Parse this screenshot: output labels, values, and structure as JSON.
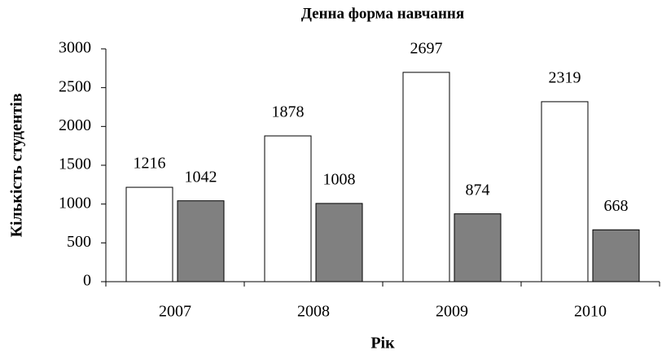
{
  "chart_data": {
    "type": "bar",
    "title": "Денна форма навчання",
    "x_label": "Рік",
    "y_label": "Кількість студентів",
    "categories": [
      "2007",
      "2008",
      "2009",
      "2010"
    ],
    "series": [
      {
        "color": "#ffffff",
        "values": [
          1216,
          1878,
          2697,
          2319
        ]
      },
      {
        "color": "#808080",
        "values": [
          1042,
          1008,
          874,
          668
        ]
      }
    ],
    "ylim": [
      0,
      3000
    ],
    "yticks": [
      0,
      500,
      1000,
      1500,
      2000,
      2500,
      3000
    ],
    "grid": false,
    "data_labels": true
  }
}
